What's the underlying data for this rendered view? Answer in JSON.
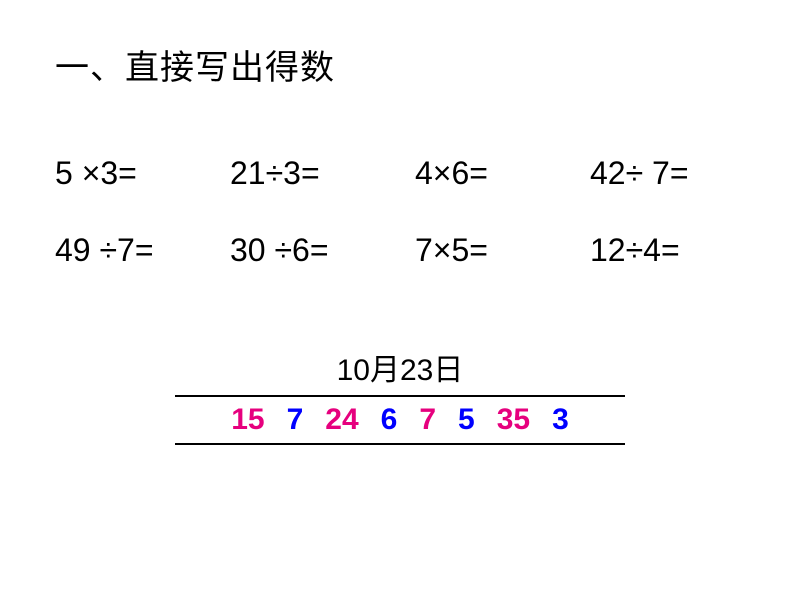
{
  "heading": "一、直接写出得数",
  "problems": {
    "row1": [
      {
        "text": "5 ×3="
      },
      {
        "text": "21÷3="
      },
      {
        "text": "4×6="
      },
      {
        "text": "42÷ 7="
      }
    ],
    "row2": [
      {
        "text": "49 ÷7="
      },
      {
        "text": "30 ÷6="
      },
      {
        "text": "7×5="
      },
      {
        "text": "12÷4="
      }
    ]
  },
  "date_label": "10月23日",
  "answers": [
    {
      "value": "15",
      "color": "#e6007e"
    },
    {
      "value": "7",
      "color": "#0000ff"
    },
    {
      "value": "24",
      "color": "#e6007e"
    },
    {
      "value": "6",
      "color": "#0000ff"
    },
    {
      "value": "7",
      "color": "#e6007e"
    },
    {
      "value": "5",
      "color": "#0000ff"
    },
    {
      "value": "35",
      "color": "#e6007e"
    },
    {
      "value": "3",
      "color": "#0000ff"
    }
  ],
  "colors": {
    "text": "#000000",
    "background": "#ffffff",
    "pink": "#e6007e",
    "blue": "#0000ff"
  },
  "typography": {
    "heading_fontsize": 34,
    "problem_fontsize": 32,
    "date_fontsize": 30,
    "answer_fontsize": 30,
    "answer_fontweight": "bold"
  }
}
